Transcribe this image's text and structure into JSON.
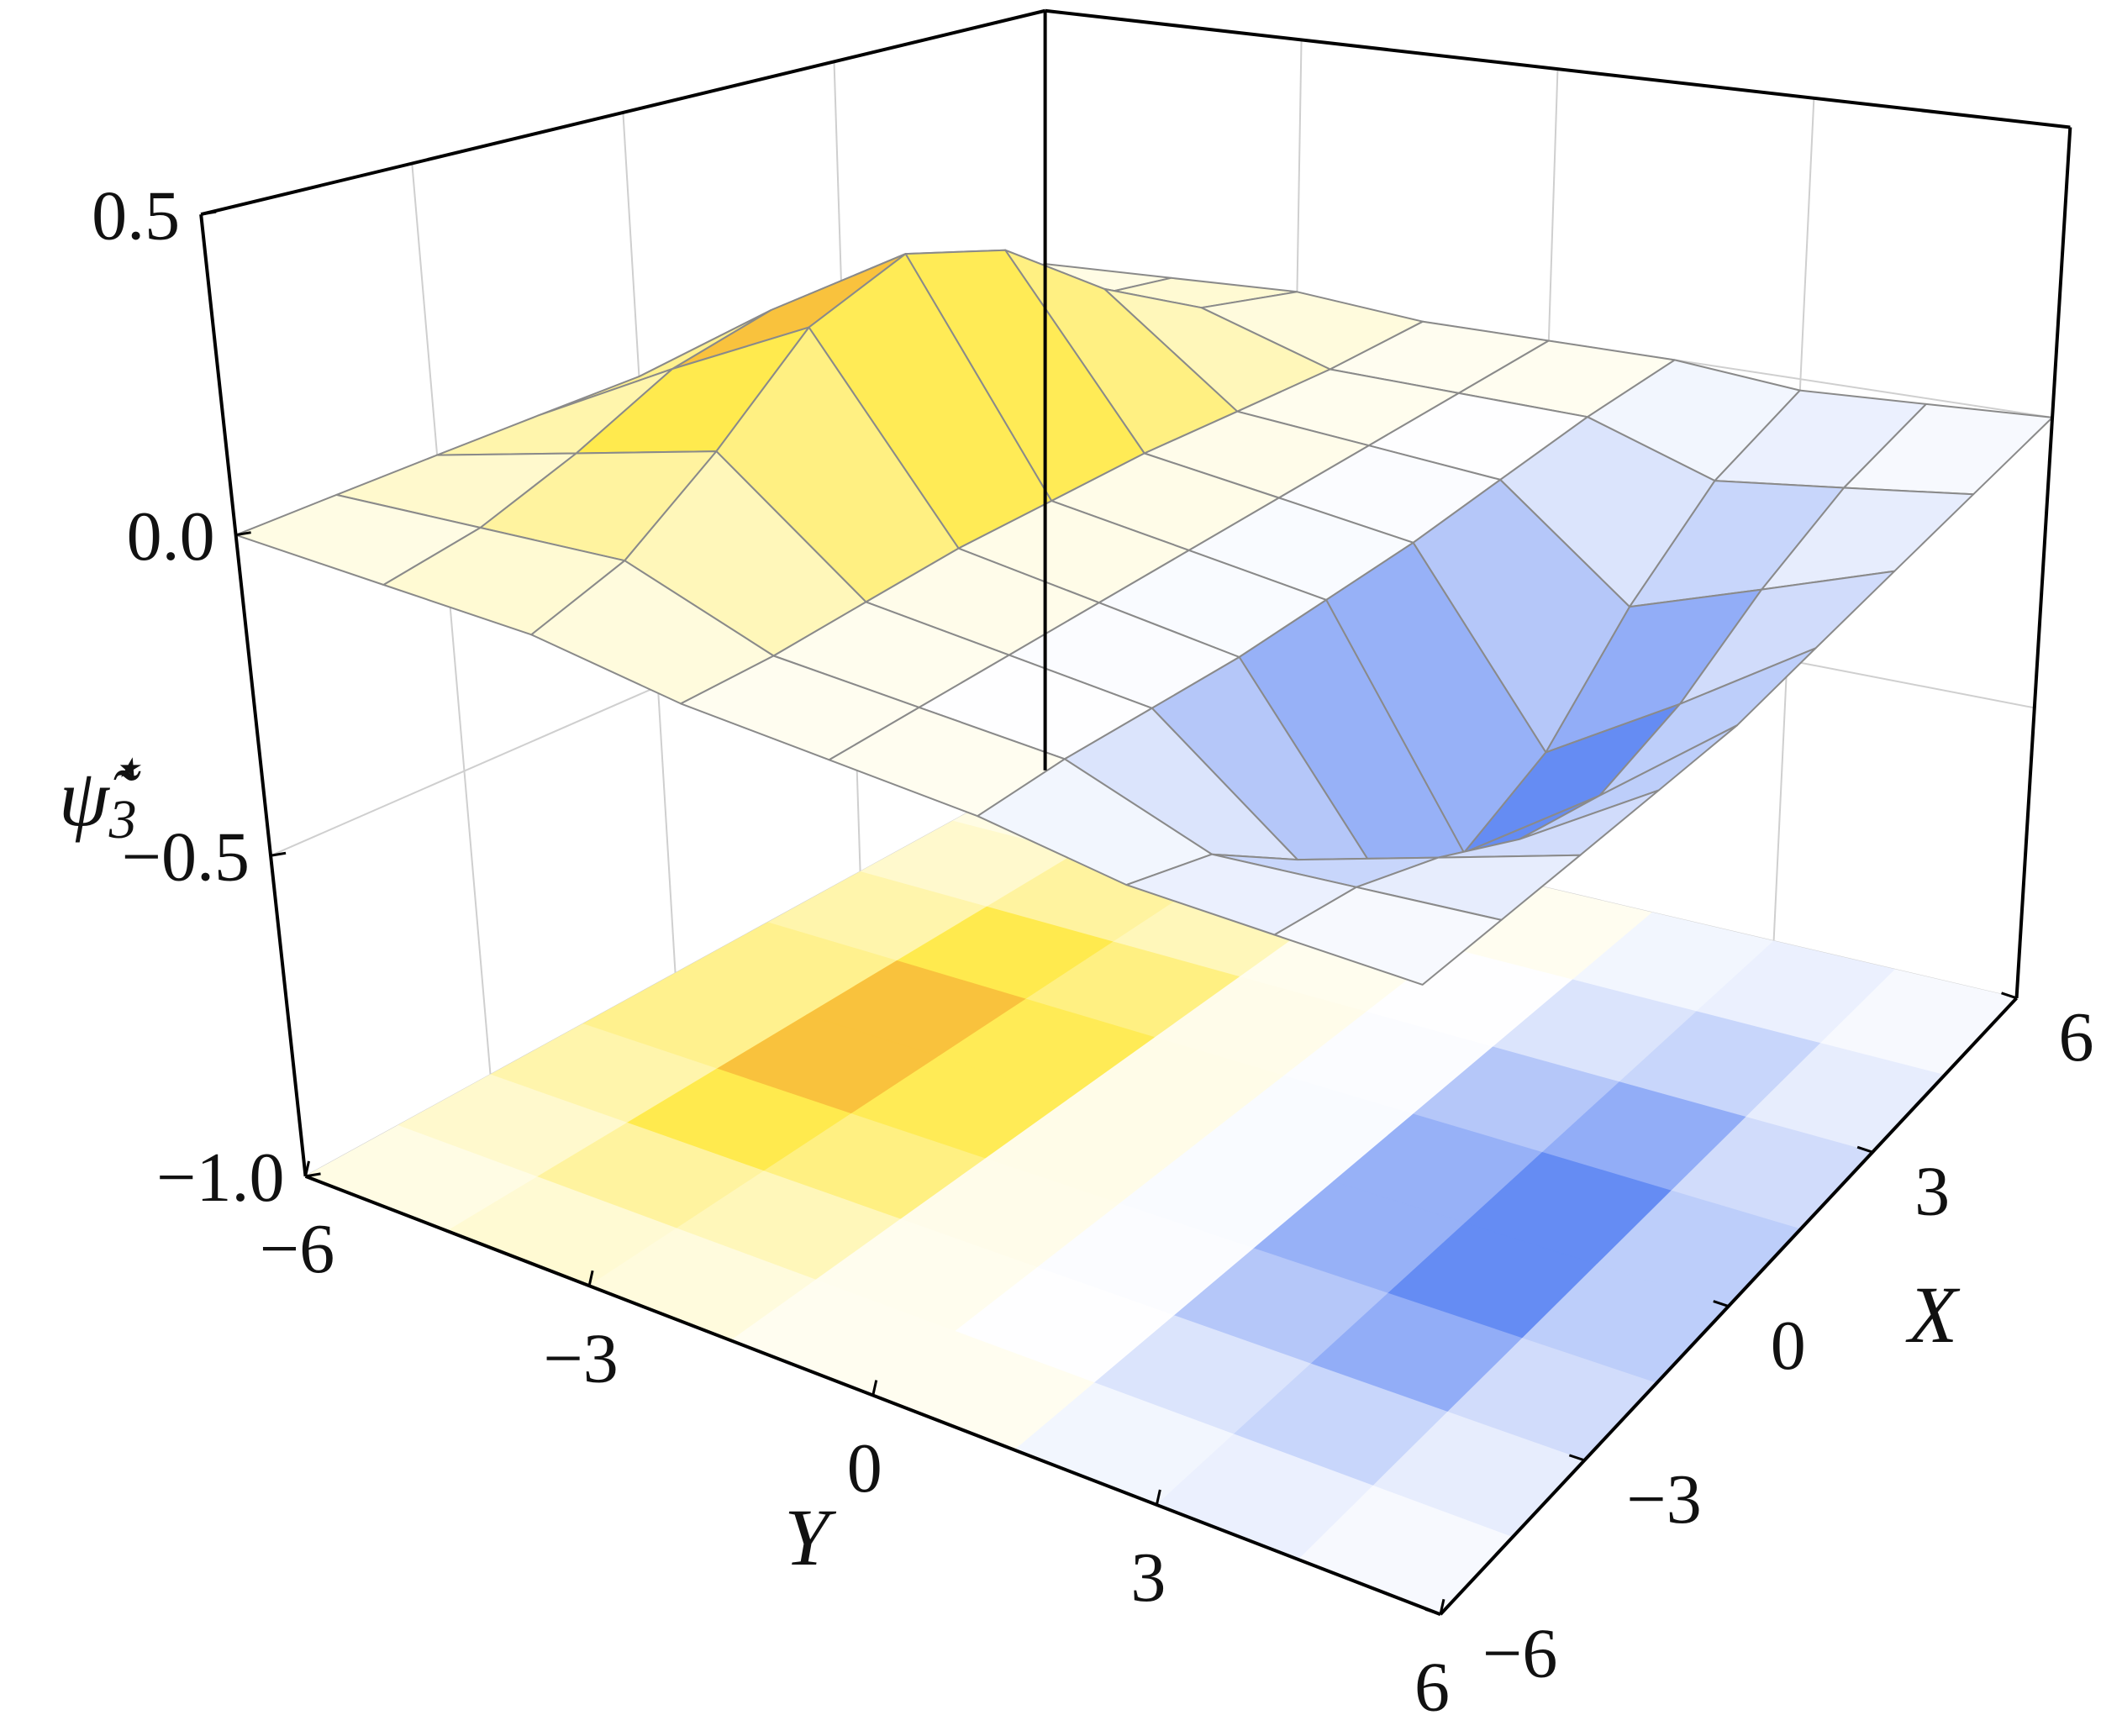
{
  "chart_data": {
    "type": "surface3d",
    "xlabel": "X",
    "ylabel": "Y",
    "zlabel": {
      "symbol": "ψ̃",
      "sub": "3",
      "sup": "⋆"
    },
    "x": [
      -6,
      -4.5,
      -3,
      -1.5,
      0,
      1.5,
      3,
      4.5,
      6
    ],
    "y": [
      -6,
      -4.5,
      -3,
      -1.5,
      0,
      1.5,
      3,
      4.5,
      6
    ],
    "z": [
      [
        0,
        0.01,
        0.02,
        0,
        0,
        0,
        -0.02,
        -0.01,
        0
      ],
      [
        0.01,
        0.04,
        0.07,
        0,
        0,
        0,
        -0.07,
        -0.04,
        -0.01
      ],
      [
        0.02,
        0.1,
        0.18,
        0.01,
        0,
        -0.01,
        -0.18,
        -0.1,
        -0.02
      ],
      [
        0.03,
        0.18,
        0.32,
        0.02,
        0,
        -0.02,
        -0.32,
        -0.18,
        -0.03
      ],
      [
        0.04,
        0.22,
        0.38,
        0.02,
        0,
        -0.02,
        -0.38,
        -0.22,
        -0.04
      ],
      [
        0.03,
        0.18,
        0.32,
        0.02,
        0,
        -0.02,
        -0.32,
        -0.18,
        -0.03
      ],
      [
        0.02,
        0.1,
        0.18,
        0.01,
        0,
        -0.01,
        -0.18,
        -0.1,
        -0.02
      ],
      [
        0.01,
        0.04,
        0.07,
        0,
        0,
        0,
        -0.07,
        -0.04,
        -0.01
      ],
      [
        0,
        0.01,
        0.02,
        0,
        0,
        0,
        -0.02,
        -0.01,
        0
      ]
    ],
    "xlim": [
      -6,
      6
    ],
    "ylim": [
      -6,
      6
    ],
    "zlim": [
      -1,
      0.5
    ],
    "xticks": [
      {
        "value": -6,
        "label": "−6"
      },
      {
        "value": -3,
        "label": "−3"
      },
      0,
      3,
      6
    ],
    "yticks": [
      {
        "value": -6,
        "label": "−6"
      },
      {
        "value": -3,
        "label": "−3"
      },
      0,
      3,
      6
    ],
    "zticks": [
      {
        "value": -1,
        "label": "−1.0"
      },
      {
        "value": -0.5,
        "label": "−0.5"
      },
      {
        "value": 0,
        "label": "0.0"
      },
      0.5
    ],
    "grid": true,
    "colors": {
      "low": "#3b6cf0",
      "zero": "#fffdf0",
      "mid": "#ffe94a",
      "high": "#ee8226"
    }
  }
}
